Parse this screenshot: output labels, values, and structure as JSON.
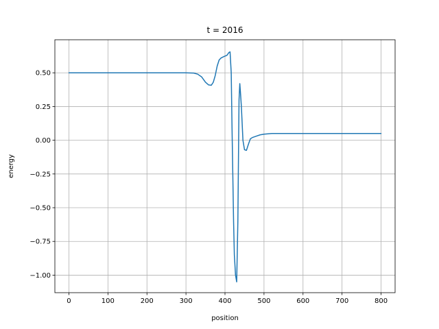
{
  "chart_data": {
    "type": "line",
    "title": "t = 2016",
    "xlabel": "position",
    "ylabel": "energy",
    "xlim": [
      -36,
      836
    ],
    "ylim": [
      -1.13,
      0.745
    ],
    "xticks": [
      0,
      100,
      200,
      300,
      400,
      500,
      600,
      700,
      800
    ],
    "yticks": [
      -1.0,
      -0.75,
      -0.5,
      -0.25,
      0.0,
      0.25,
      0.5
    ],
    "ytick_labels": [
      "−1.00",
      "−0.75",
      "−0.50",
      "−0.25",
      "0.00",
      "0.25",
      "0.50"
    ],
    "grid": true,
    "series": [
      {
        "color": "#1f77b4",
        "x": [
          0,
          100,
          200,
          300,
          320,
          330,
          340,
          350,
          358,
          365,
          370,
          375,
          380,
          385,
          390,
          397,
          405,
          410,
          413,
          416,
          418,
          420,
          422,
          424,
          427,
          430,
          433,
          436,
          438,
          440,
          442,
          446,
          450,
          455,
          460,
          465,
          470,
          480,
          490,
          500,
          520,
          550,
          600,
          700,
          800
        ],
        "y": [
          0.5,
          0.5,
          0.5,
          0.5,
          0.498,
          0.49,
          0.47,
          0.43,
          0.41,
          0.408,
          0.43,
          0.48,
          0.55,
          0.595,
          0.61,
          0.62,
          0.63,
          0.65,
          0.655,
          0.5,
          0.1,
          -0.25,
          -0.6,
          -0.85,
          -1.0,
          -1.05,
          -0.6,
          0.3,
          0.42,
          0.34,
          0.25,
          0.0,
          -0.07,
          -0.075,
          -0.03,
          0.01,
          0.02,
          0.03,
          0.04,
          0.045,
          0.05,
          0.05,
          0.05,
          0.05,
          0.05
        ]
      }
    ]
  }
}
